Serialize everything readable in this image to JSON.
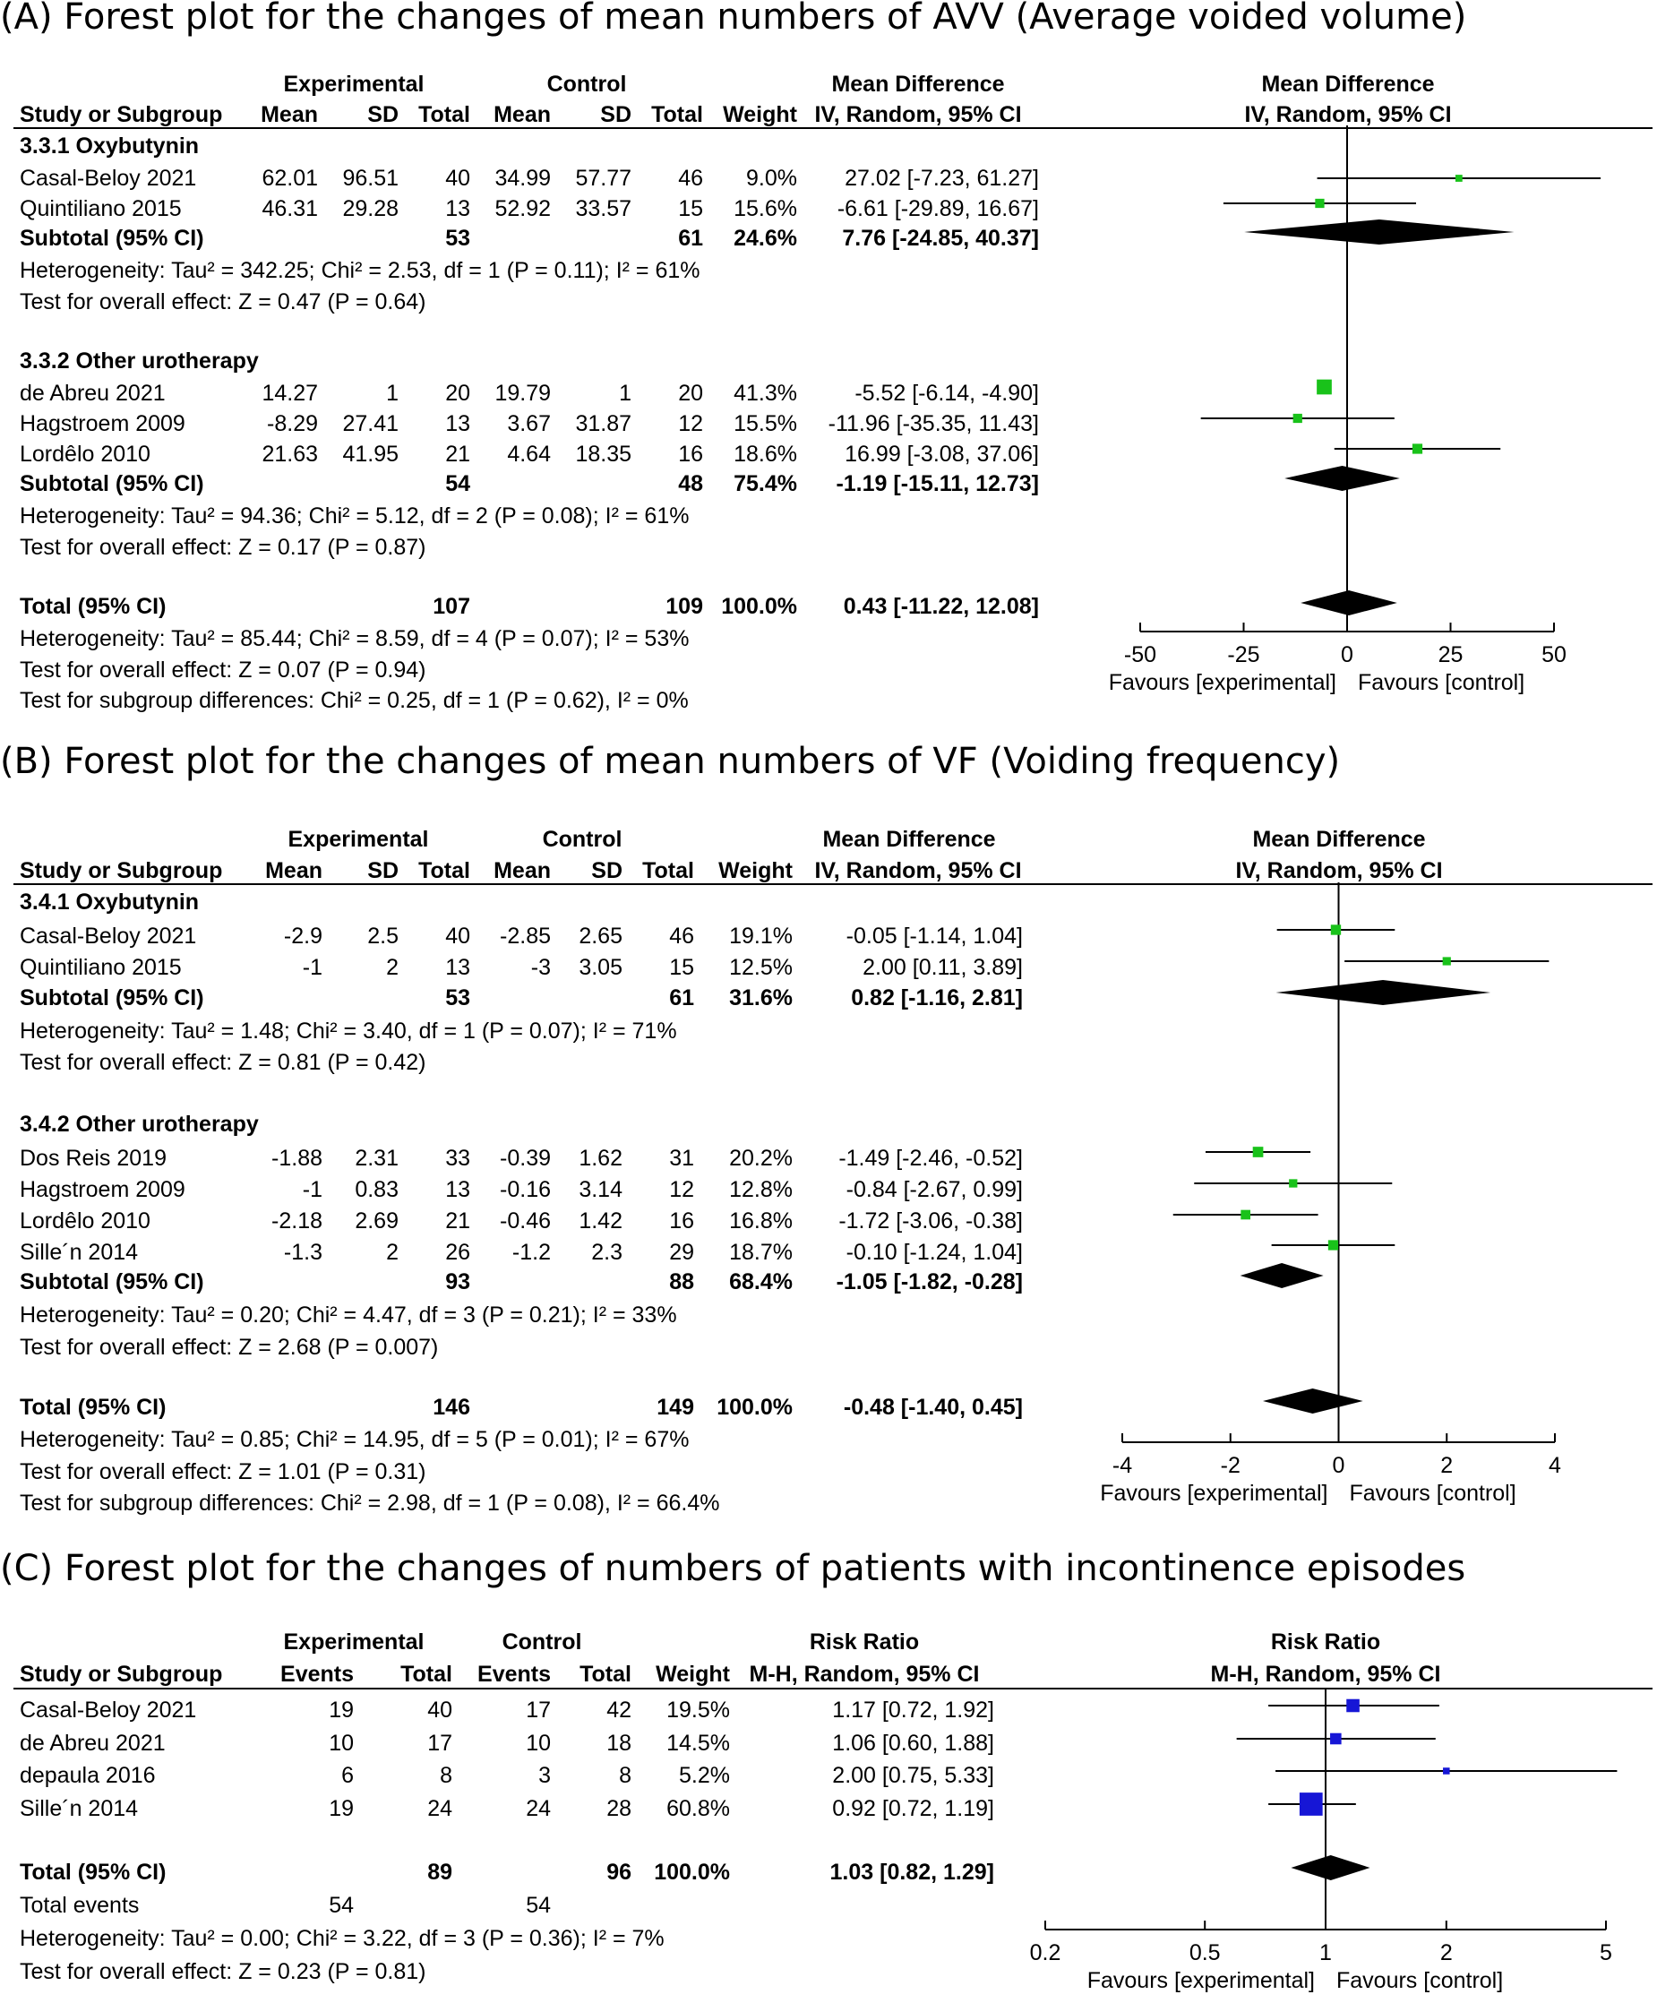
{
  "chart_data": [
    {
      "type": "forest",
      "title": "(A) Forest plot for the changes of mean numbers of AVV (Average voided volume)",
      "measure": "Mean Difference",
      "method": "IV, Random, 95% CI",
      "header": {
        "group1": "Experimental",
        "group2": "Control",
        "effect": "Mean Difference",
        "plot": "Mean Difference",
        "cols": [
          "Study or Subgroup",
          "Mean",
          "SD",
          "Total",
          "Mean",
          "SD",
          "Total",
          "Weight",
          "IV, Random, 95% CI",
          "IV, Random, 95% CI"
        ]
      },
      "xlim": [
        -50,
        50
      ],
      "ticks": [
        "-50",
        "-25",
        "0",
        "25",
        "50"
      ],
      "favours": [
        "Favours [experimental]",
        "Favours [control]"
      ],
      "groups": [
        {
          "name": "3.3.1 Oxybutynin",
          "studies": [
            {
              "study": "Casal-Beloy 2021",
              "c1": "62.01",
              "c2": "96.51",
              "c3": "40",
              "c4": "34.99",
              "c5": "57.77",
              "c6": "46",
              "weight": "9.0%",
              "ci_text": "27.02 [-7.23, 61.27]",
              "est": 27.02,
              "lo": -7.23,
              "hi": 61.27
            },
            {
              "study": "Quintiliano 2015",
              "c1": "46.31",
              "c2": "29.28",
              "c3": "13",
              "c4": "52.92",
              "c5": "33.57",
              "c6": "15",
              "weight": "15.6%",
              "ci_text": "-6.61 [-29.89, 16.67]",
              "est": -6.61,
              "lo": -29.89,
              "hi": 16.67
            }
          ],
          "subtotal": {
            "label": "Subtotal (95% CI)",
            "n1": "53",
            "n2": "61",
            "weight": "24.6%",
            "ci_text": "7.76 [-24.85, 40.37]",
            "est": 7.76,
            "lo": -24.85,
            "hi": 40.37
          },
          "het": "Heterogeneity: Tau² = 342.25; Chi² = 2.53, df = 1 (P = 0.11); I² = 61%",
          "test": "Test for overall effect: Z = 0.47 (P = 0.64)"
        },
        {
          "name": "3.3.2 Other urotherapy",
          "studies": [
            {
              "study": "de Abreu 2021",
              "c1": "14.27",
              "c2": "1",
              "c3": "20",
              "c4": "19.79",
              "c5": "1",
              "c6": "20",
              "weight": "41.3%",
              "ci_text": "-5.52 [-6.14, -4.90]",
              "est": -5.52,
              "lo": -6.14,
              "hi": -4.9
            },
            {
              "study": "Hagstroem 2009",
              "c1": "-8.29",
              "c2": "27.41",
              "c3": "13",
              "c4": "3.67",
              "c5": "31.87",
              "c6": "12",
              "weight": "15.5%",
              "ci_text": "-11.96 [-35.35, 11.43]",
              "est": -11.96,
              "lo": -35.35,
              "hi": 11.43
            },
            {
              "study": "Lordêlo 2010",
              "c1": "21.63",
              "c2": "41.95",
              "c3": "21",
              "c4": "4.64",
              "c5": "18.35",
              "c6": "16",
              "weight": "18.6%",
              "ci_text": "16.99 [-3.08, 37.06]",
              "est": 16.99,
              "lo": -3.08,
              "hi": 37.06
            }
          ],
          "subtotal": {
            "label": "Subtotal (95% CI)",
            "n1": "54",
            "n2": "48",
            "weight": "75.4%",
            "ci_text": "-1.19 [-15.11, 12.73]",
            "est": -1.19,
            "lo": -15.11,
            "hi": 12.73
          },
          "het": "Heterogeneity: Tau² = 94.36; Chi² = 5.12, df = 2 (P = 0.08); I² = 61%",
          "test": "Test for overall effect: Z = 0.17 (P = 0.87)"
        }
      ],
      "total": {
        "label": "Total (95% CI)",
        "n1": "107",
        "n2": "109",
        "weight": "100.0%",
        "ci_text": "0.43 [-11.22, 12.08]",
        "est": 0.43,
        "lo": -11.22,
        "hi": 12.08
      },
      "footer": [
        "Heterogeneity: Tau² = 85.44; Chi² = 8.59, df = 4 (P = 0.07); I² = 53%",
        "Test for overall effect: Z = 0.07 (P = 0.94)",
        "Test for subgroup differences: Chi² = 0.25, df = 1 (P = 0.62), I² = 0%"
      ]
    },
    {
      "type": "forest",
      "title": "(B) Forest plot for the changes of mean numbers of VF (Voiding frequency)",
      "measure": "Mean Difference",
      "method": "IV, Random, 95% CI",
      "header": {
        "group1": "Experimental",
        "group2": "Control",
        "effect": "Mean Difference",
        "plot": "Mean Difference",
        "cols": [
          "Study or Subgroup",
          "Mean",
          "SD",
          "Total",
          "Mean",
          "SD",
          "Total",
          "Weight",
          "IV, Random, 95% CI",
          "IV, Random, 95% CI"
        ]
      },
      "xlim": [
        -4,
        4
      ],
      "ticks": [
        "-4",
        "-2",
        "0",
        "2",
        "4"
      ],
      "favours": [
        "Favours [experimental]",
        "Favours [control]"
      ],
      "groups": [
        {
          "name": "3.4.1 Oxybutynin",
          "studies": [
            {
              "study": "Casal-Beloy 2021",
              "c1": "-2.9",
              "c2": "2.5",
              "c3": "40",
              "c4": "-2.85",
              "c5": "2.65",
              "c6": "46",
              "weight": "19.1%",
              "ci_text": "-0.05 [-1.14, 1.04]",
              "est": -0.05,
              "lo": -1.14,
              "hi": 1.04
            },
            {
              "study": "Quintiliano 2015",
              "c1": "-1",
              "c2": "2",
              "c3": "13",
              "c4": "-3",
              "c5": "3.05",
              "c6": "15",
              "weight": "12.5%",
              "ci_text": "2.00 [0.11, 3.89]",
              "est": 2.0,
              "lo": 0.11,
              "hi": 3.89
            }
          ],
          "subtotal": {
            "label": "Subtotal (95% CI)",
            "n1": "53",
            "n2": "61",
            "weight": "31.6%",
            "ci_text": "0.82 [-1.16, 2.81]",
            "est": 0.82,
            "lo": -1.16,
            "hi": 2.81
          },
          "het": "Heterogeneity: Tau² = 1.48; Chi² = 3.40, df = 1 (P = 0.07); I² = 71%",
          "test": "Test for overall effect: Z = 0.81 (P = 0.42)"
        },
        {
          "name": "3.4.2 Other urotherapy",
          "studies": [
            {
              "study": "Dos Reis 2019",
              "c1": "-1.88",
              "c2": "2.31",
              "c3": "33",
              "c4": "-0.39",
              "c5": "1.62",
              "c6": "31",
              "weight": "20.2%",
              "ci_text": "-1.49 [-2.46, -0.52]",
              "est": -1.49,
              "lo": -2.46,
              "hi": -0.52
            },
            {
              "study": "Hagstroem 2009",
              "c1": "-1",
              "c2": "0.83",
              "c3": "13",
              "c4": "-0.16",
              "c5": "3.14",
              "c6": "12",
              "weight": "12.8%",
              "ci_text": "-0.84 [-2.67, 0.99]",
              "est": -0.84,
              "lo": -2.67,
              "hi": 0.99
            },
            {
              "study": "Lordêlo 2010",
              "c1": "-2.18",
              "c2": "2.69",
              "c3": "21",
              "c4": "-0.46",
              "c5": "1.42",
              "c6": "16",
              "weight": "16.8%",
              "ci_text": "-1.72 [-3.06, -0.38]",
              "est": -1.72,
              "lo": -3.06,
              "hi": -0.38
            },
            {
              "study": "Sille´n 2014",
              "c1": "-1.3",
              "c2": "2",
              "c3": "26",
              "c4": "-1.2",
              "c5": "2.3",
              "c6": "29",
              "weight": "18.7%",
              "ci_text": "-0.10 [-1.24, 1.04]",
              "est": -0.1,
              "lo": -1.24,
              "hi": 1.04
            }
          ],
          "subtotal": {
            "label": "Subtotal (95% CI)",
            "n1": "93",
            "n2": "88",
            "weight": "68.4%",
            "ci_text": "-1.05 [-1.82, -0.28]",
            "est": -1.05,
            "lo": -1.82,
            "hi": -0.28
          },
          "het": "Heterogeneity: Tau² = 0.20; Chi² = 4.47, df = 3 (P = 0.21); I² = 33%",
          "test": "Test for overall effect: Z = 2.68 (P = 0.007)"
        }
      ],
      "total": {
        "label": "Total (95% CI)",
        "n1": "146",
        "n2": "149",
        "weight": "100.0%",
        "ci_text": "-0.48 [-1.40, 0.45]",
        "est": -0.48,
        "lo": -1.4,
        "hi": 0.45
      },
      "footer": [
        "Heterogeneity: Tau² = 0.85; Chi² = 14.95, df = 5 (P = 0.01); I² = 67%",
        "Test for overall effect: Z = 1.01 (P = 0.31)",
        "Test for subgroup differences: Chi² = 2.98, df = 1 (P = 0.08), I² = 66.4%"
      ]
    },
    {
      "type": "forest",
      "title": "(C)  Forest plot for the changes of numbers of patients with incontinence episodes",
      "measure": "Risk Ratio",
      "method": "M-H, Random, 95% CI",
      "log_scale": true,
      "header": {
        "group1": "Experimental",
        "group2": "Control",
        "effect": "Risk Ratio",
        "plot": "Risk Ratio",
        "cols": [
          "Study or Subgroup",
          "Events",
          "Total",
          "Events",
          "Total",
          "Weight",
          "M-H, Random, 95% CI",
          "M-H, Random, 95% CI"
        ]
      },
      "xlim": [
        0.2,
        5
      ],
      "ticks": [
        "0.2",
        "0.5",
        "1",
        "2",
        "5"
      ],
      "favours": [
        "Favours [experimental]",
        "Favours [control]"
      ],
      "studies": [
        {
          "study": "Casal-Beloy 2021",
          "e1": "19",
          "t1": "40",
          "e2": "17",
          "t2": "42",
          "weight": "19.5%",
          "ci_text": "1.17 [0.72, 1.92]",
          "est": 1.17,
          "lo": 0.72,
          "hi": 1.92
        },
        {
          "study": "de Abreu 2021",
          "e1": "10",
          "t1": "17",
          "e2": "10",
          "t2": "18",
          "weight": "14.5%",
          "ci_text": "1.06 [0.60, 1.88]",
          "est": 1.06,
          "lo": 0.6,
          "hi": 1.88
        },
        {
          "study": "depaula 2016",
          "e1": "6",
          "t1": "8",
          "e2": "3",
          "t2": "8",
          "weight": "5.2%",
          "ci_text": "2.00 [0.75, 5.33]",
          "est": 2.0,
          "lo": 0.75,
          "hi": 5.33
        },
        {
          "study": "Sille´n 2014",
          "e1": "19",
          "t1": "24",
          "e2": "24",
          "t2": "28",
          "weight": "60.8%",
          "ci_text": "0.92 [0.72, 1.19]",
          "est": 0.92,
          "lo": 0.72,
          "hi": 1.19
        }
      ],
      "total": {
        "label": "Total (95% CI)",
        "n1": "89",
        "n2": "96",
        "weight": "100.0%",
        "ci_text": "1.03 [0.82, 1.29]",
        "est": 1.03,
        "lo": 0.82,
        "hi": 1.29
      },
      "total_events": {
        "label": "Total events",
        "e1": "54",
        "e2": "54"
      },
      "footer": [
        "Heterogeneity: Tau² = 0.00; Chi² = 3.22, df = 3 (P = 0.36); I² = 7%",
        "Test for overall effect: Z = 0.23 (P = 0.81)"
      ]
    }
  ]
}
